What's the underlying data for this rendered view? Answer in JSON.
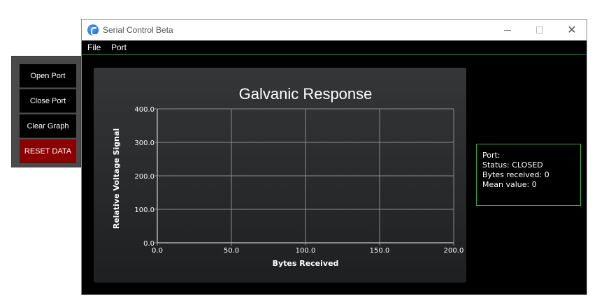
{
  "side_panel": {
    "open_port": "Open Port",
    "close_port": "Close Port",
    "clear_graph": "Clear Graph",
    "reset_data": "RESET DATA",
    "reset_color": "#8b0000"
  },
  "window": {
    "title": "Serial Control Beta",
    "icon": "app-logo-icon",
    "controls": {
      "minimize": "minimize-icon",
      "maximize": "maximize-icon",
      "close": "close-icon"
    }
  },
  "menu": {
    "file": "File",
    "port": "Port"
  },
  "info": {
    "port_label": "Port:",
    "status_label": "Status:",
    "status_value": "CLOSED",
    "bytes_label": "Bytes received:",
    "bytes_value": "0",
    "mean_label": "Mean value:",
    "mean_value": "0",
    "border_color": "#3fa34d"
  },
  "chart_data": {
    "type": "line",
    "title": "Galvanic Response",
    "xlabel": "Bytes Received",
    "ylabel": "Relative Voltage Signal",
    "xlim": [
      0,
      200
    ],
    "ylim": [
      0,
      400
    ],
    "xticks": [
      "0.0",
      "50.0",
      "100.0",
      "150.0",
      "200.0"
    ],
    "yticks": [
      "0.0",
      "100.0",
      "200.0",
      "300.0",
      "400.0"
    ],
    "grid": true,
    "series": [],
    "colors": {
      "grid": "#8c8c8c",
      "text": "#ffffff"
    }
  }
}
